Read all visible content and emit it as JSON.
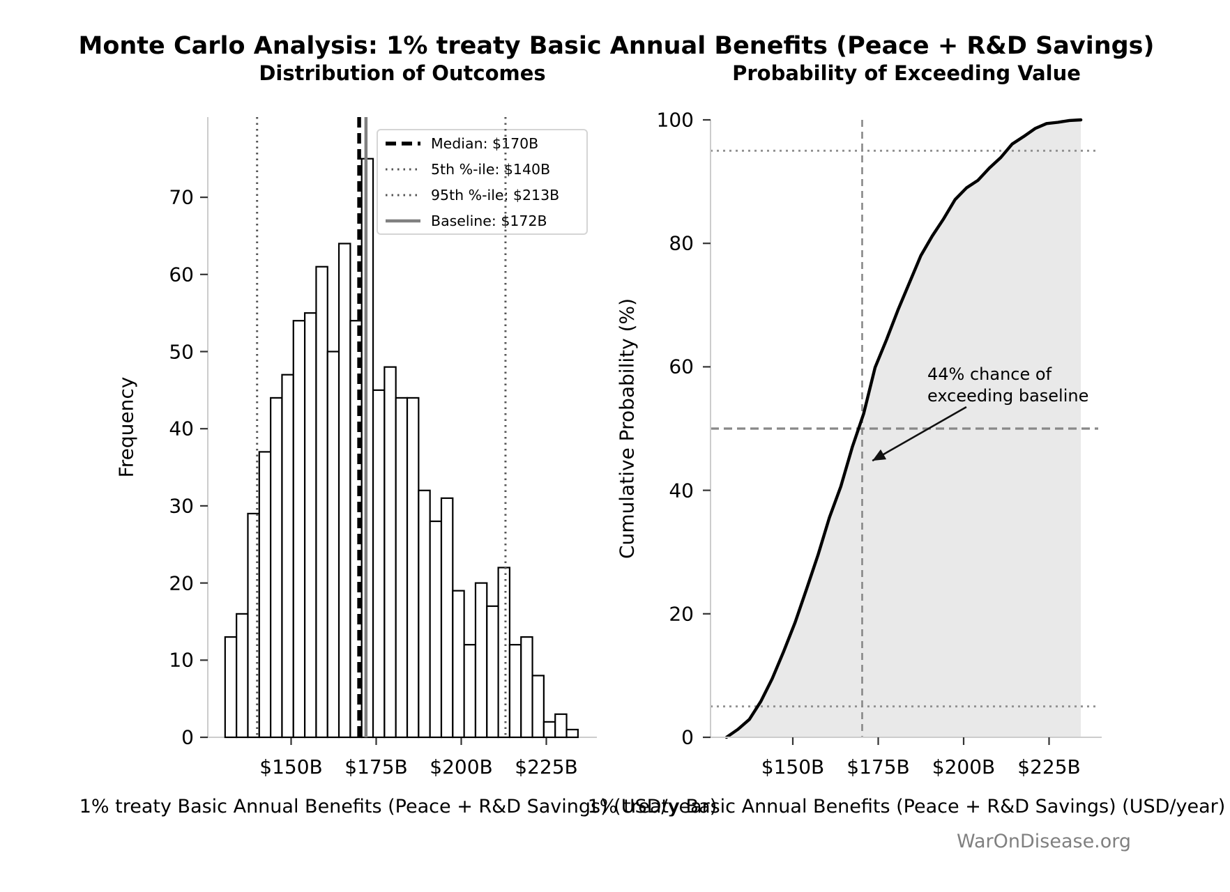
{
  "figure": {
    "suptitle": "Monte Carlo Analysis: 1% treaty Basic Annual Benefits (Peace + R&D Savings)",
    "watermark": "WarOnDisease.org"
  },
  "colors": {
    "background": "#ffffff",
    "bar_fill": "#ffffff",
    "bar_edge": "#000000",
    "median_line": "#000000",
    "percentile_line": "#555555",
    "baseline_line": "#808080",
    "cdf_curve": "#000000",
    "cdf_fill": "#e9e9e9",
    "gray_dashed": "#888888",
    "gray_dotted": "#909090",
    "spine": "#cccccc",
    "tick_mark": "#333333",
    "muted_text": "#808080"
  },
  "chart_data": [
    {
      "type": "bar",
      "subtype": "histogram",
      "title": "Distribution of Outcomes",
      "xlabel": "1% treaty Basic Annual Benefits (Peace + R&D Savings) (USD/year)",
      "ylabel": "Frequency",
      "bin_start": 130.6,
      "bin_width": 3.345,
      "frequencies": [
        13,
        16,
        29,
        37,
        44,
        47,
        54,
        55,
        61,
        50,
        64,
        54,
        75,
        45,
        48,
        44,
        44,
        32,
        28,
        31,
        19,
        12,
        20,
        17,
        22,
        12,
        13,
        8,
        2,
        3,
        1
      ],
      "x_ticks": [
        {
          "value": 150,
          "label": "$150B"
        },
        {
          "value": 175,
          "label": "$175B"
        },
        {
          "value": 200,
          "label": "$200B"
        },
        {
          "value": 225,
          "label": "$225B"
        }
      ],
      "y_ticks": [
        0,
        10,
        20,
        30,
        40,
        50,
        60,
        70
      ],
      "ylim": [
        0,
        80
      ],
      "xlim": [
        125.4,
        239.7
      ],
      "grid": false,
      "vlines": [
        {
          "name": "median",
          "x": 170,
          "label": "Median: $170B",
          "style": "dashed-black"
        },
        {
          "name": "p5",
          "x": 140,
          "label": "5th %-ile: $140B",
          "style": "dotted-gray"
        },
        {
          "name": "p95",
          "x": 213,
          "label": "95th %-ile: $213B",
          "style": "dotted-gray"
        },
        {
          "name": "baseline",
          "x": 172,
          "label": "Baseline: $172B",
          "style": "solid-gray"
        }
      ],
      "legend_position": "upper right"
    },
    {
      "type": "line",
      "subtype": "cdf",
      "title": "Probability of Exceeding Value",
      "xlabel": "1% treaty Basic Annual Benefits (Peace + R&D Savings) (USD/year)",
      "ylabel": "Cumulative Probability (%)",
      "x": [
        130.6,
        133.95,
        137.29,
        140.64,
        143.98,
        147.33,
        150.67,
        154.02,
        157.36,
        160.71,
        164.05,
        167.4,
        170.74,
        174.09,
        177.43,
        180.78,
        184.12,
        187.47,
        190.81,
        194.16,
        197.5,
        200.85,
        204.19,
        207.54,
        210.88,
        214.23,
        217.57,
        220.92,
        224.26,
        227.61,
        230.95,
        234.3
      ],
      "y": [
        0,
        1.3,
        2.9,
        5.8,
        9.5,
        13.9,
        18.6,
        24.0,
        29.5,
        35.6,
        40.6,
        47.0,
        52.4,
        59.9,
        64.4,
        69.2,
        73.6,
        78.0,
        81.2,
        84.0,
        87.1,
        89.0,
        90.2,
        92.2,
        93.9,
        96.1,
        97.3,
        98.6,
        99.4,
        99.6,
        99.9,
        100.0
      ],
      "fill_under": true,
      "x_ticks": [
        {
          "value": 150,
          "label": "$150B"
        },
        {
          "value": 175,
          "label": "$175B"
        },
        {
          "value": 200,
          "label": "$200B"
        },
        {
          "value": 225,
          "label": "$225B"
        }
      ],
      "y_ticks": [
        0,
        20,
        40,
        60,
        80,
        100
      ],
      "ylim": [
        0,
        100
      ],
      "xlim": [
        125.4,
        239.7
      ],
      "hlines": [
        {
          "y": 95,
          "style": "dotted"
        },
        {
          "y": 50,
          "style": "dashed"
        },
        {
          "y": 5,
          "style": "dotted"
        }
      ],
      "vline": {
        "x": 170.3,
        "style": "dashed"
      },
      "annotation": {
        "text_lines": [
          "44% chance of",
          "exceeding baseline"
        ],
        "arrow_from_data": [
          200.8,
          53.5
        ],
        "arrow_to_data": [
          173.3,
          44.8
        ]
      }
    }
  ]
}
